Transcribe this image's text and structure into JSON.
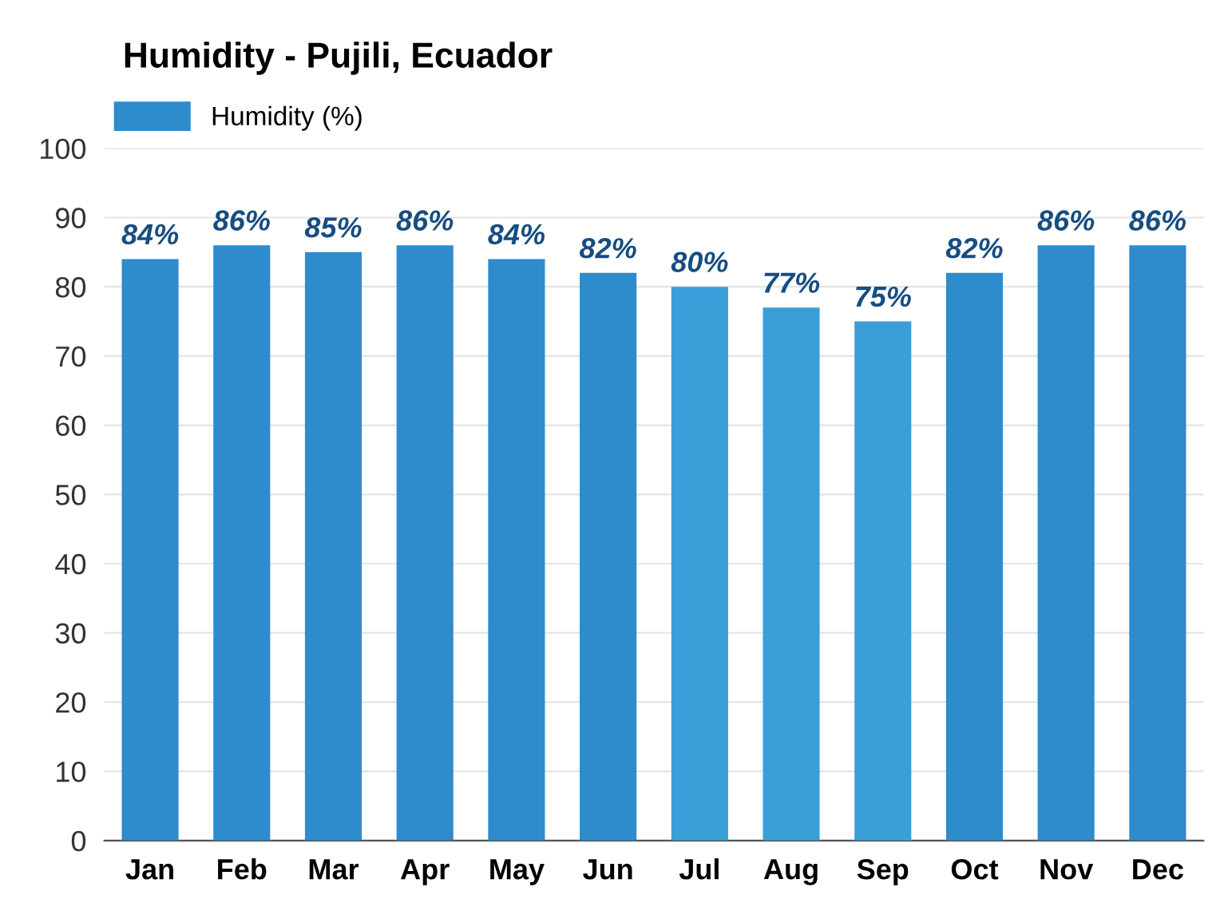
{
  "chart_data": {
    "type": "bar",
    "title": "Humidity - Pujili, Ecuador",
    "categories": [
      "Jan",
      "Feb",
      "Mar",
      "Apr",
      "May",
      "Jun",
      "Jul",
      "Aug",
      "Sep",
      "Oct",
      "Nov",
      "Dec"
    ],
    "series": [
      {
        "name": "Humidity (%)",
        "color": "#2e8bcc",
        "values": [
          84,
          86,
          85,
          86,
          84,
          82,
          80,
          77,
          75,
          82,
          86,
          86
        ],
        "colors": [
          "#2e8bcc",
          "#2e8bcc",
          "#2e8bcc",
          "#2e8bcc",
          "#2e8bcc",
          "#2e8bcc",
          "#3a9fd9",
          "#3a9fd9",
          "#3a9fd9",
          "#2e8bcc",
          "#2e8bcc",
          "#2e8bcc"
        ],
        "value_labels": [
          "84%",
          "86%",
          "85%",
          "86%",
          "84%",
          "82%",
          "80%",
          "77%",
          "75%",
          "82%",
          "86%",
          "86%"
        ]
      }
    ],
    "ylim": [
      0,
      100
    ],
    "yticks": [
      0,
      10,
      20,
      30,
      40,
      50,
      60,
      70,
      80,
      90,
      100
    ],
    "grid": "y",
    "legend": "top left"
  }
}
